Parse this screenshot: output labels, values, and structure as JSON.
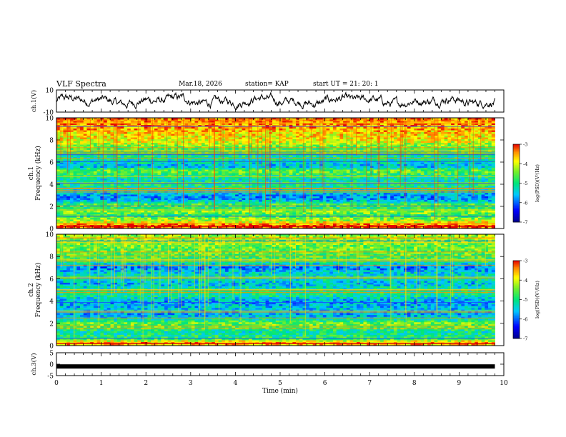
{
  "header": {
    "title": "VLF Spectra",
    "date": "Mar.18, 2026",
    "station": "station= KAP",
    "start_time": "start  UT  =   21: 20: 1"
  },
  "chart_data": [
    {
      "type": "line",
      "name": "ch1-waveform",
      "ylabel": "ch.1(V)",
      "ylim": [
        -10,
        10
      ],
      "yticks": [
        "10",
        "-10"
      ],
      "xlim": [
        0,
        9.8
      ],
      "description_note": "noisy broadband waveform"
    },
    {
      "type": "heatmap",
      "name": "ch1-spectrogram",
      "ylabel": "ch.1",
      "ylabel2": "Frequency (kHz)",
      "ylim": [
        0,
        10
      ],
      "yticks": [
        "0",
        "2",
        "4",
        "6",
        "8",
        "10"
      ],
      "xlim": [
        0,
        9.8
      ],
      "band_levels": [
        {
          "f": 0.3,
          "v": -3.2
        },
        {
          "f": 0.6,
          "v": -4.0
        },
        {
          "f": 0.9,
          "v": -4.4
        },
        {
          "f": 1.2,
          "v": -4.8
        },
        {
          "f": 1.5,
          "v": -4.3
        },
        {
          "f": 1.8,
          "v": -5.0
        },
        {
          "f": 2.1,
          "v": -4.4
        },
        {
          "f": 2.4,
          "v": -5.4
        },
        {
          "f": 2.8,
          "v": -5.8
        },
        {
          "f": 3.2,
          "v": -5.5
        },
        {
          "f": 3.6,
          "v": -5.2
        },
        {
          "f": 4.0,
          "v": -5.0
        },
        {
          "f": 4.4,
          "v": -5.3
        },
        {
          "f": 4.8,
          "v": -4.9
        },
        {
          "f": 5.2,
          "v": -4.5
        },
        {
          "f": 5.6,
          "v": -5.6
        },
        {
          "f": 6.0,
          "v": -5.3
        },
        {
          "f": 6.6,
          "v": -5.0
        },
        {
          "f": 7.2,
          "v": -4.7
        },
        {
          "f": 7.8,
          "v": -4.0
        },
        {
          "f": 8.5,
          "v": -3.8
        },
        {
          "f": 9.2,
          "v": -3.5
        },
        {
          "f": 9.9,
          "v": -3.4
        }
      ],
      "colorbar": {
        "label": "log(PSD)(V²/Hz)",
        "range": [
          -7,
          -3
        ],
        "ticks": [
          "-3",
          "-4",
          "-5",
          "-6",
          "-7"
        ]
      }
    },
    {
      "type": "heatmap",
      "name": "ch2-spectrogram",
      "ylabel": "ch.2",
      "ylabel2": "Frequency (kHz)",
      "ylim": [
        0,
        10
      ],
      "yticks": [
        "0",
        "2",
        "4",
        "6",
        "8",
        "10"
      ],
      "xlim": [
        0,
        9.8
      ],
      "band_levels": [
        {
          "f": 0.3,
          "v": -3.6
        },
        {
          "f": 0.6,
          "v": -4.8
        },
        {
          "f": 0.9,
          "v": -5.0
        },
        {
          "f": 1.2,
          "v": -5.2
        },
        {
          "f": 1.6,
          "v": -4.6
        },
        {
          "f": 2.0,
          "v": -4.5
        },
        {
          "f": 2.4,
          "v": -5.3
        },
        {
          "f": 2.8,
          "v": -5.7
        },
        {
          "f": 3.2,
          "v": -5.5
        },
        {
          "f": 3.6,
          "v": -5.6
        },
        {
          "f": 4.0,
          "v": -5.7
        },
        {
          "f": 4.4,
          "v": -5.2
        },
        {
          "f": 4.8,
          "v": -5.0
        },
        {
          "f": 5.2,
          "v": -5.3
        },
        {
          "f": 5.6,
          "v": -5.6
        },
        {
          "f": 6.0,
          "v": -5.2
        },
        {
          "f": 6.5,
          "v": -5.4
        },
        {
          "f": 7.0,
          "v": -5.9
        },
        {
          "f": 7.6,
          "v": -4.9
        },
        {
          "f": 8.2,
          "v": -4.6
        },
        {
          "f": 8.8,
          "v": -4.5
        },
        {
          "f": 9.4,
          "v": -4.4
        },
        {
          "f": 9.9,
          "v": -4.3
        }
      ],
      "colorbar": {
        "label": "log(PSD)(V²/Hz)",
        "range": [
          -7,
          -3
        ],
        "ticks": [
          "-3",
          "-4",
          "-5",
          "-6",
          "-7"
        ]
      }
    },
    {
      "type": "line",
      "name": "ch3-waveform",
      "ylabel": "ch.3(V)",
      "ylim": [
        -5,
        5
      ],
      "yticks": [
        "5",
        "0",
        "-5"
      ],
      "xlim": [
        0,
        9.8
      ],
      "constant_level": -1
    }
  ],
  "x_axis": {
    "label": "Time (min)",
    "range": [
      0,
      10
    ],
    "ticks": [
      "0",
      "1",
      "2",
      "3",
      "4",
      "5",
      "6",
      "7",
      "8",
      "9",
      "10"
    ]
  }
}
